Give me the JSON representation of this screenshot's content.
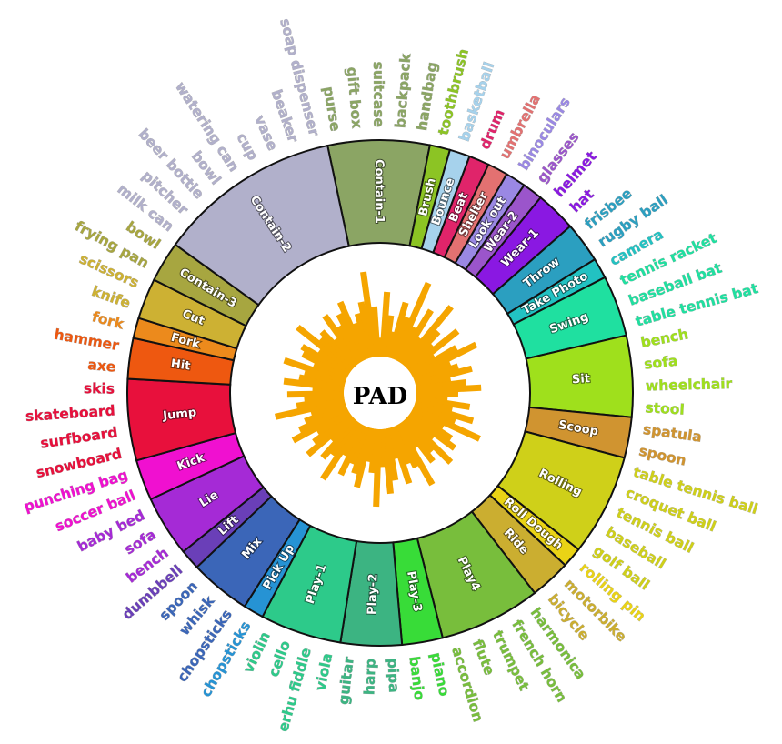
{
  "title": "PAD",
  "colors": {
    "bars": "#f5a500",
    "ring_border": "#111111",
    "ring_background": "#ffffff"
  },
  "segments": [
    {
      "label": "Contain-1",
      "color": "#8ba564",
      "objects": [
        "purse",
        "gift box",
        "suitcase",
        "backpack",
        "handbag"
      ]
    },
    {
      "label": "Brush",
      "color": "#8cc424",
      "objects": [
        "toothbrush"
      ]
    },
    {
      "label": "Bounce",
      "color": "#a6d2ec",
      "objects": [
        "basketball"
      ]
    },
    {
      "label": "Beat",
      "color": "#e0246a",
      "objects": [
        "drum"
      ]
    },
    {
      "label": "Shelter",
      "color": "#e37171",
      "objects": [
        "umbrella"
      ]
    },
    {
      "label": "Look out",
      "color": "#9a88e4",
      "objects": [
        "binoculars"
      ]
    },
    {
      "label": "Wear-2",
      "color": "#9b55cb",
      "objects": [
        "glasses"
      ]
    },
    {
      "label": "Wear-1",
      "color": "#8a18e2",
      "objects": [
        "helmet",
        "hat"
      ]
    },
    {
      "label": "Throw",
      "color": "#2b9fc0",
      "objects": [
        "frisbee",
        "rugby ball"
      ]
    },
    {
      "label": "Take Photo",
      "color": "#22c2c2",
      "objects": [
        "camera"
      ]
    },
    {
      "label": "Swing",
      "color": "#1fe0a0",
      "objects": [
        "tennis racket",
        "baseball bat",
        "table tennis bat"
      ]
    },
    {
      "label": "Sit",
      "color": "#9fe01c",
      "objects": [
        "bench",
        "sofa",
        "wheelchair",
        "stool"
      ]
    },
    {
      "label": "Scoop",
      "color": "#d09430",
      "objects": [
        "spatula",
        "spoon"
      ]
    },
    {
      "label": "Rolling",
      "color": "#cfd019",
      "objects": [
        "table tennis ball",
        "croquet ball",
        "tennis ball",
        "baseball",
        "golf ball"
      ]
    },
    {
      "label": "Roll Dough",
      "color": "#ead315",
      "objects": [
        "rolling pin"
      ]
    },
    {
      "label": "Ride",
      "color": "#cbae30",
      "objects": [
        "motorbike",
        "bicycle"
      ]
    },
    {
      "label": "Play4",
      "color": "#78be3c",
      "objects": [
        "harmonica",
        "french horn",
        "trumpet",
        "flute",
        "accordion"
      ]
    },
    {
      "label": "Play-3",
      "color": "#38dc38",
      "objects": [
        "piano",
        "banjo"
      ]
    },
    {
      "label": "Play-2",
      "color": "#3cb482",
      "objects": [
        "pipa",
        "harp",
        "guitar"
      ]
    },
    {
      "label": "Play-1",
      "color": "#2dca8a",
      "objects": [
        "viola",
        "erhu fiddle",
        "cello",
        "violin"
      ]
    },
    {
      "label": "Pick Up",
      "color": "#2693d4",
      "objects": [
        "chopsticks"
      ]
    },
    {
      "label": "Mix",
      "color": "#3b66b8",
      "objects": [
        "chopsticks",
        "whisk",
        "spoon"
      ]
    },
    {
      "label": "Lift",
      "color": "#6a3fb8",
      "objects": [
        "dumbbell"
      ]
    },
    {
      "label": "Lie",
      "color": "#a52ad6",
      "objects": [
        "bench",
        "sofa",
        "baby bed"
      ]
    },
    {
      "label": "Kick",
      "color": "#f010d0",
      "objects": [
        "soccer ball",
        "punching bag"
      ]
    },
    {
      "label": "Jump",
      "color": "#e8103c",
      "objects": [
        "snowboard",
        "surfboard",
        "skateboard",
        "skis"
      ]
    },
    {
      "label": "Hit",
      "color": "#ee5810",
      "objects": [
        "axe",
        "hammer"
      ]
    },
    {
      "label": "Fork",
      "color": "#ec8a1c",
      "objects": [
        "fork"
      ]
    },
    {
      "label": "Cut",
      "color": "#cdb133",
      "objects": [
        "knife",
        "scissors"
      ]
    },
    {
      "label": "Contain-3",
      "color": "#a7a640",
      "objects": [
        "frying pan",
        "bowl"
      ]
    },
    {
      "label": "Contain-2",
      "color": "#b1b0cb",
      "objects": [
        "milk can",
        "pitcher",
        "beer bottle",
        "bowl",
        "watering can",
        "cup",
        "vase",
        "beaker",
        "soap dispenser"
      ]
    }
  ],
  "bars": [
    0.18,
    0.62,
    0.4,
    0.25,
    0.55,
    0.42,
    0.8,
    0.36,
    0.58,
    0.3,
    0.72,
    0.46,
    0.33,
    0.6,
    0.28,
    0.5,
    0.68,
    0.38,
    0.44,
    0.56,
    0.34,
    0.48,
    0.62,
    0.4,
    0.3,
    0.52,
    0.36,
    0.58,
    0.42,
    0.7,
    0.34,
    0.46,
    0.54,
    0.32,
    0.6,
    0.4,
    0.48,
    0.28,
    0.66,
    0.44,
    0.38,
    0.56,
    0.3,
    0.5,
    0.62,
    0.36,
    0.74,
    0.42,
    0.32,
    0.58,
    0.46,
    0.38,
    0.52,
    0.34,
    0.64,
    0.4,
    0.48,
    0.3,
    0.56,
    0.44,
    0.36,
    0.6,
    0.5,
    0.42,
    0.34,
    0.68,
    0.46,
    0.38,
    0.54,
    0.3,
    0.58,
    0.44,
    0.4,
    0.62,
    0.34,
    0.48,
    0.52,
    0.36,
    0.66,
    0.42,
    0.46,
    0.32,
    0.56,
    0.4,
    0.5,
    0.6,
    0.36,
    0.44,
    0.54,
    0.82,
    0.48
  ]
}
